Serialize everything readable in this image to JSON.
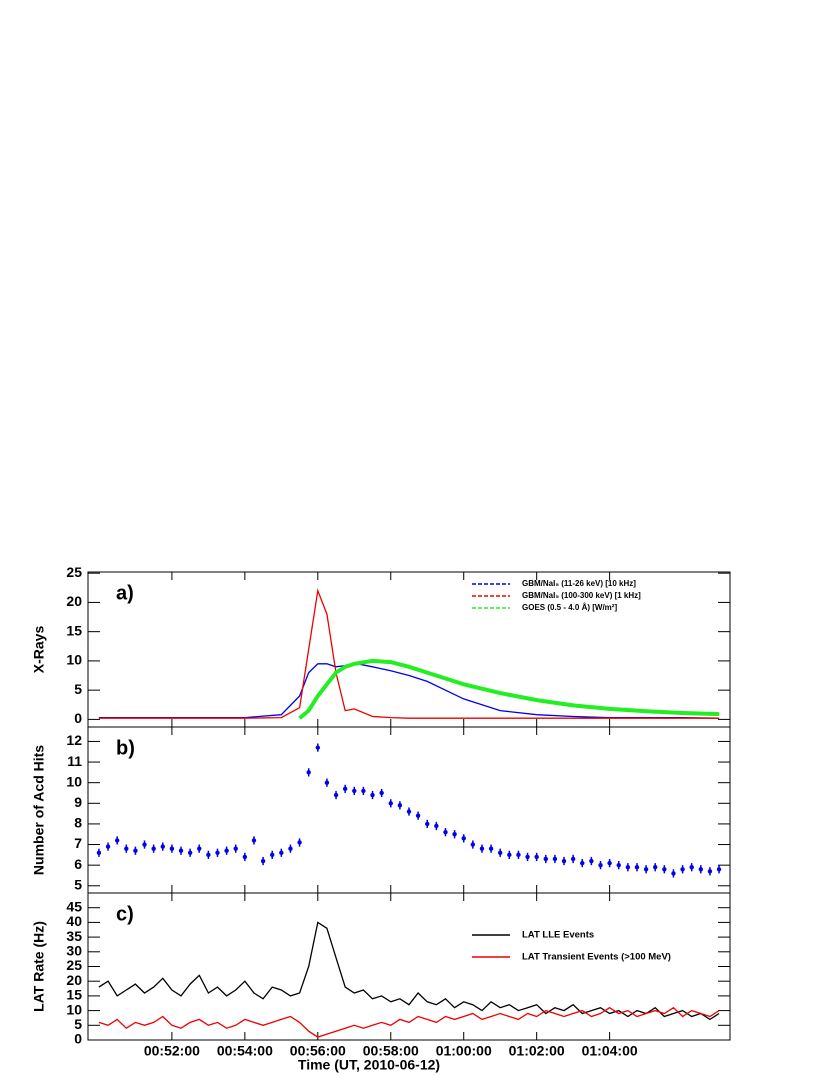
{
  "chart_data": [
    {
      "type": "line",
      "annotation": "a)",
      "ylabel": "X-Rays",
      "x": [
        50,
        51,
        52,
        53,
        54,
        55,
        55.5,
        55.75,
        56,
        56.25,
        56.5,
        56.75,
        57,
        57.5,
        58,
        58.5,
        59,
        59.5,
        60,
        61,
        62,
        63,
        64,
        65,
        66,
        67
      ],
      "xlim": [
        49.7,
        67.3
      ],
      "xticks": [
        52,
        54,
        56,
        58,
        60,
        62,
        64
      ],
      "ylim": [
        -1.3,
        25.2
      ],
      "yticks": [
        0,
        5,
        10,
        15,
        20,
        25
      ],
      "legend": "upper right",
      "series": [
        {
          "name": "GBM/NaI₅ (11-26 keV) [10 kHz]",
          "color": "#0000ee",
          "values": [
            0.3,
            0.3,
            0.3,
            0.3,
            0.3,
            0.8,
            4,
            8,
            9.5,
            9.5,
            9,
            9.2,
            9.6,
            9,
            8.3,
            7.5,
            6.5,
            5,
            3.5,
            1.5,
            0.8,
            0.5,
            0.3,
            0.3,
            0.3,
            0.2
          ]
        },
        {
          "name": "GBM/NaI₅ (100-300 keV) [1 kHz]",
          "color": "#ee0000",
          "values": [
            0.2,
            0.2,
            0.2,
            0.2,
            0.2,
            0.3,
            2,
            12,
            22,
            18,
            8,
            1.5,
            1.8,
            0.5,
            0.3,
            0.2,
            0.2,
            0.2,
            0.2,
            0.2,
            0.2,
            0.2,
            0.2,
            0.2,
            0.2,
            0.2
          ]
        },
        {
          "name": "GOES (0.5 - 4.0 Å) [W/m²]",
          "color": "#22ee22",
          "values": [
            null,
            null,
            null,
            null,
            null,
            null,
            0.2,
            1.5,
            4,
            6,
            8,
            9,
            9.5,
            10,
            9.8,
            9,
            8,
            7,
            6,
            4.5,
            3.3,
            2.4,
            1.8,
            1.4,
            1.1,
            0.9
          ]
        }
      ]
    },
    {
      "type": "scatter",
      "annotation": "b)",
      "ylabel": "Number of Acd Hits",
      "x": [
        50,
        50.25,
        50.5,
        50.75,
        51,
        51.25,
        51.5,
        51.75,
        52,
        52.25,
        52.5,
        52.75,
        53,
        53.25,
        53.5,
        53.75,
        54,
        54.25,
        54.5,
        54.75,
        55,
        55.25,
        55.5,
        55.75,
        56,
        56.25,
        56.5,
        56.75,
        57,
        57.25,
        57.5,
        57.75,
        58,
        58.25,
        58.5,
        58.75,
        59,
        59.25,
        59.5,
        59.75,
        60,
        60.25,
        60.5,
        60.75,
        61,
        61.25,
        61.5,
        61.75,
        62,
        62.25,
        62.5,
        62.75,
        63,
        63.25,
        63.5,
        63.75,
        64,
        64.25,
        64.5,
        64.75,
        65,
        65.25,
        65.5,
        65.75,
        66,
        66.25,
        66.5,
        66.75,
        67
      ],
      "values": [
        6.6,
        6.9,
        7.2,
        6.8,
        6.7,
        7.0,
        6.8,
        6.9,
        6.8,
        6.7,
        6.6,
        6.8,
        6.5,
        6.6,
        6.7,
        6.8,
        6.4,
        7.2,
        6.2,
        6.5,
        6.6,
        6.8,
        7.1,
        10.5,
        11.7,
        10.0,
        9.4,
        9.7,
        9.6,
        9.6,
        9.4,
        9.5,
        9.0,
        8.9,
        8.6,
        8.4,
        8.0,
        7.9,
        7.6,
        7.5,
        7.3,
        7.0,
        6.8,
        6.8,
        6.6,
        6.5,
        6.5,
        6.4,
        6.4,
        6.3,
        6.3,
        6.2,
        6.3,
        6.1,
        6.2,
        6.0,
        6.1,
        6.0,
        5.9,
        5.9,
        5.8,
        5.9,
        5.8,
        5.6,
        5.8,
        5.9,
        5.8,
        5.7,
        5.8
      ],
      "error": 0.2,
      "color": "#0000ee",
      "xlim": [
        49.7,
        67.3
      ],
      "xticks": [
        52,
        54,
        56,
        58,
        60,
        62,
        64
      ],
      "ylim": [
        4.65,
        12.7
      ],
      "yticks": [
        5,
        6,
        7,
        8,
        9,
        10,
        11,
        12
      ]
    },
    {
      "type": "line",
      "annotation": "c)",
      "ylabel": "LAT Rate (Hz)",
      "xlabel": "Time (UT, 2010-06-12)",
      "x": [
        50,
        50.25,
        50.5,
        50.75,
        51,
        51.25,
        51.5,
        51.75,
        52,
        52.25,
        52.5,
        52.75,
        53,
        53.25,
        53.5,
        53.75,
        54,
        54.25,
        54.5,
        54.75,
        55,
        55.25,
        55.5,
        55.75,
        56,
        56.25,
        56.5,
        56.75,
        57,
        57.25,
        57.5,
        57.75,
        58,
        58.25,
        58.5,
        58.75,
        59,
        59.25,
        59.5,
        59.75,
        60,
        60.25,
        60.5,
        60.75,
        61,
        61.25,
        61.5,
        61.75,
        62,
        62.25,
        62.5,
        62.75,
        63,
        63.25,
        63.5,
        63.75,
        64,
        64.25,
        64.5,
        64.75,
        65,
        65.25,
        65.5,
        65.75,
        66,
        66.25,
        66.5,
        66.75,
        67
      ],
      "xlim": [
        49.7,
        67.3
      ],
      "xticks": [
        {
          "value": 52,
          "label": "00:52:00"
        },
        {
          "value": 54,
          "label": "00:54:00"
        },
        {
          "value": 56,
          "label": "00:56:00"
        },
        {
          "value": 58,
          "label": "00:58:00"
        },
        {
          "value": 60,
          "label": "01:00:00"
        },
        {
          "value": 62,
          "label": "01:02:00"
        },
        {
          "value": 64,
          "label": "01:04:00"
        }
      ],
      "ylim": [
        0,
        50
      ],
      "yticks": [
        0,
        5,
        10,
        15,
        20,
        25,
        30,
        35,
        40,
        45
      ],
      "legend": "upper right",
      "series": [
        {
          "name": "LAT LLE Events",
          "color": "#000000",
          "values": [
            18,
            20,
            15,
            17,
            19,
            16,
            18,
            21,
            17,
            15,
            19,
            22,
            16,
            18,
            15,
            17,
            20,
            16,
            14,
            18,
            17,
            15,
            16,
            25,
            40,
            38,
            28,
            18,
            16,
            17,
            14,
            15,
            13,
            14,
            12,
            16,
            13,
            12,
            14,
            11,
            13,
            12,
            10,
            13,
            11,
            12,
            10,
            11,
            12,
            9,
            11,
            10,
            12,
            9,
            10,
            11,
            9,
            10,
            8,
            10,
            9,
            11,
            8,
            9,
            10,
            8,
            9,
            7,
            9
          ]
        },
        {
          "name": "LAT Transient Events (>100 MeV)",
          "color": "#ee0000",
          "values": [
            6,
            5,
            7,
            4,
            6,
            5,
            6,
            8,
            5,
            4,
            6,
            7,
            5,
            6,
            4,
            5,
            7,
            6,
            5,
            6,
            7,
            8,
            6,
            3,
            1,
            2,
            3,
            4,
            5,
            4,
            5,
            6,
            5,
            7,
            6,
            8,
            7,
            6,
            8,
            7,
            8,
            9,
            7,
            8,
            9,
            8,
            7,
            9,
            8,
            10,
            9,
            8,
            9,
            10,
            8,
            9,
            11,
            9,
            10,
            8,
            9,
            10,
            9,
            11,
            8,
            10,
            9,
            8,
            10
          ]
        }
      ]
    }
  ]
}
